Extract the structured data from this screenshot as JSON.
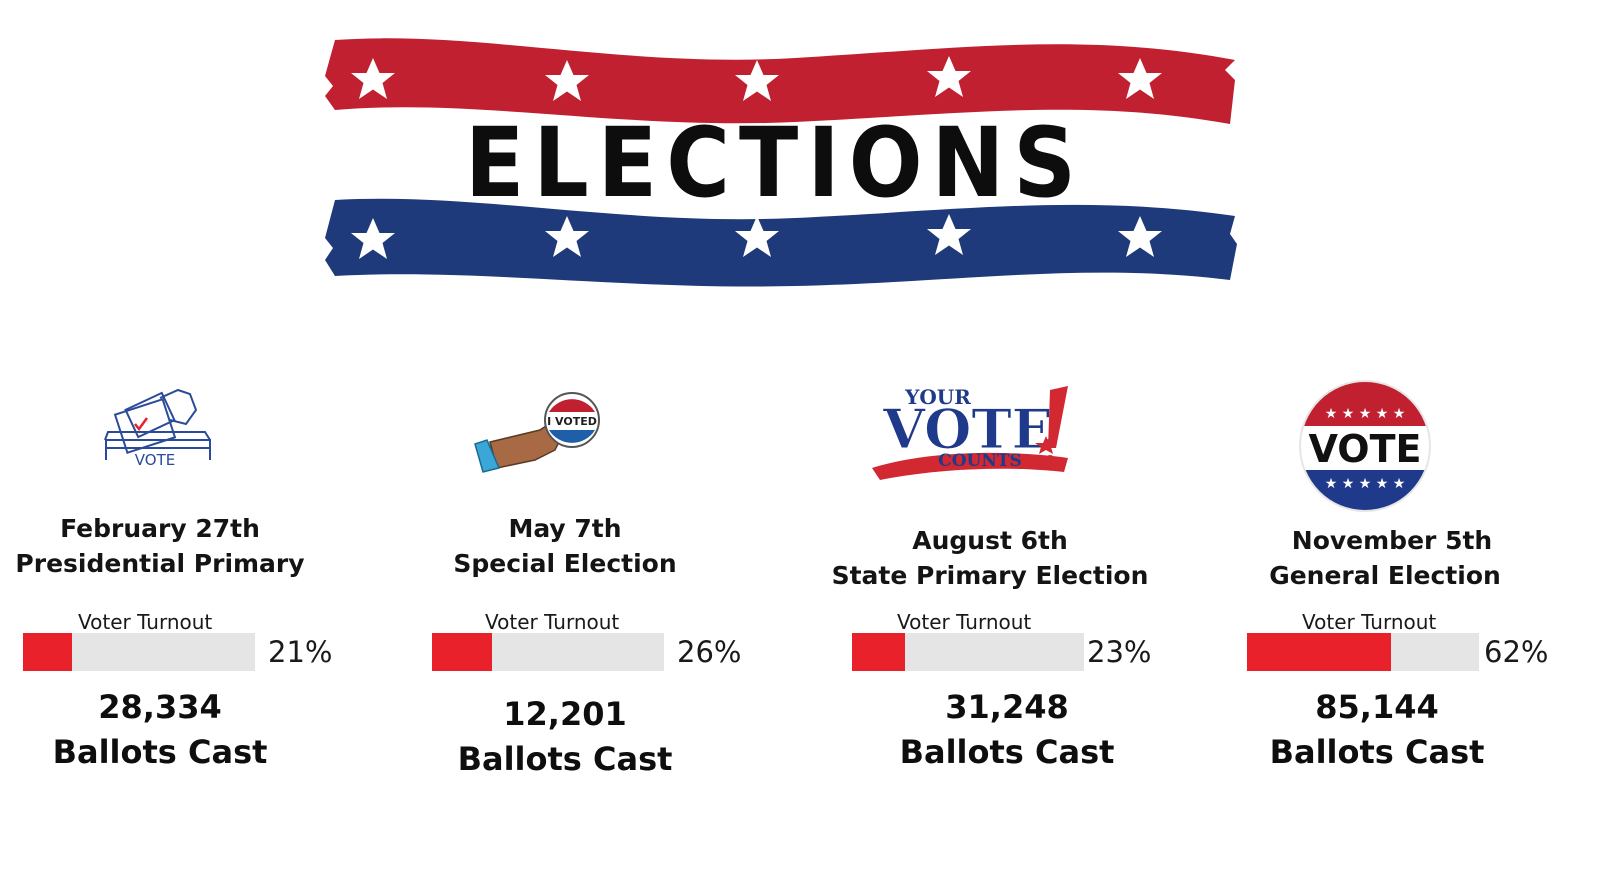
{
  "banner": {
    "title": "ELECTIONS",
    "colors": {
      "red": "#c0202f",
      "blue": "#1f3a7a",
      "star": "#ffffff",
      "text": "#0d0d0d"
    }
  },
  "turnout_label": "Voter Turnout",
  "ballots_label": "Ballots Cast",
  "elections": [
    {
      "icon": "ballot-box-icon",
      "icon_text": "VOTE",
      "date": "February 27th",
      "name": "Presidential Primary",
      "turnout_percent": 21,
      "turnout_text": "21%",
      "ballots_cast": "28,334"
    },
    {
      "icon": "i-voted-sticker-icon",
      "icon_text": "I VOTED",
      "date": "May 7th",
      "name": "Special Election",
      "turnout_percent": 26,
      "turnout_text": "26%",
      "ballots_cast": "12,201"
    },
    {
      "icon": "your-vote-counts-icon",
      "icon_text": [
        "YOUR",
        "VOTE",
        "COUNTS"
      ],
      "date": "August 6th",
      "name": "State Primary Election",
      "turnout_percent": 23,
      "turnout_text": "23%",
      "ballots_cast": "31,248"
    },
    {
      "icon": "vote-button-icon",
      "icon_text": "VOTE",
      "date": "November 5th",
      "name": "General Election",
      "turnout_percent": 62,
      "turnout_text": "62%",
      "ballots_cast": "85,144"
    }
  ],
  "bar_colors": {
    "fill": "#e8212b",
    "track": "#e5e5e5"
  }
}
